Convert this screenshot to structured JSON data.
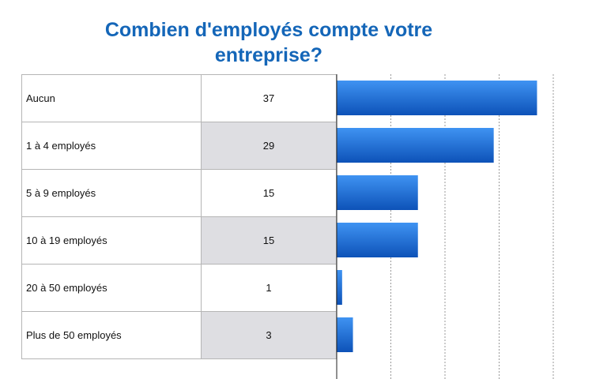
{
  "chart_data": {
    "type": "bar",
    "orientation": "horizontal",
    "title": "Combien d'employés compte votre entreprise?",
    "categories": [
      "Aucun",
      "1 à 4 employés",
      "5 à 9 employés",
      "10 à 19 employés",
      "20 à 50 employés",
      "Plus de 50 employés"
    ],
    "values": [
      37,
      29,
      15,
      15,
      1,
      3
    ],
    "xlim": [
      0,
      40
    ],
    "grid": true,
    "bar_color": "#1f6fd6"
  }
}
